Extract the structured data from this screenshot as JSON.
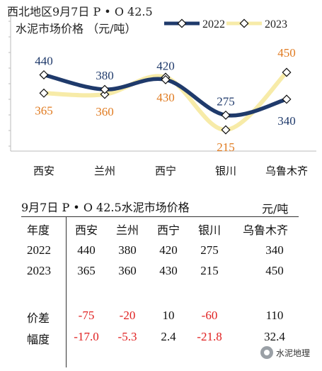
{
  "chart_data": {
    "type": "line",
    "title_line1": "西北地区9月7日  P • O 42.5",
    "title_line2": "水泥市场价格 （元/吨）",
    "categories": [
      "西安",
      "兰州",
      "西宁",
      "银川",
      "乌鲁木齐"
    ],
    "series": [
      {
        "name": "2022",
        "values": [
          440,
          380,
          420,
          275,
          340
        ],
        "color": "#1f3a6b",
        "label_color": "#1f3a6b"
      },
      {
        "name": "2023",
        "values": [
          365,
          360,
          430,
          215,
          450
        ],
        "color": "#f7eba8",
        "label_color": "#e07a1f"
      }
    ],
    "legend_position": "top-right",
    "grid": false
  },
  "table": {
    "title": "9月7日 P • O 42.5水泥市场价格",
    "unit": "元/吨",
    "header": [
      "年度",
      "西安",
      "兰州",
      "西宁",
      "银川",
      "乌鲁木齐"
    ],
    "rows": [
      {
        "label": "2022",
        "values": [
          "440",
          "380",
          "420",
          "275",
          "340"
        ]
      },
      {
        "label": "2023",
        "values": [
          "365",
          "360",
          "430",
          "215",
          "450"
        ]
      },
      {
        "label": "价差",
        "values": [
          "-75",
          "-20",
          "10",
          "-60",
          "110"
        ]
      },
      {
        "label": "幅度",
        "values": [
          "-17.0",
          "-5.3",
          "2.4",
          "-21.8",
          "32.4"
        ]
      }
    ]
  },
  "watermark": "水泥地理"
}
